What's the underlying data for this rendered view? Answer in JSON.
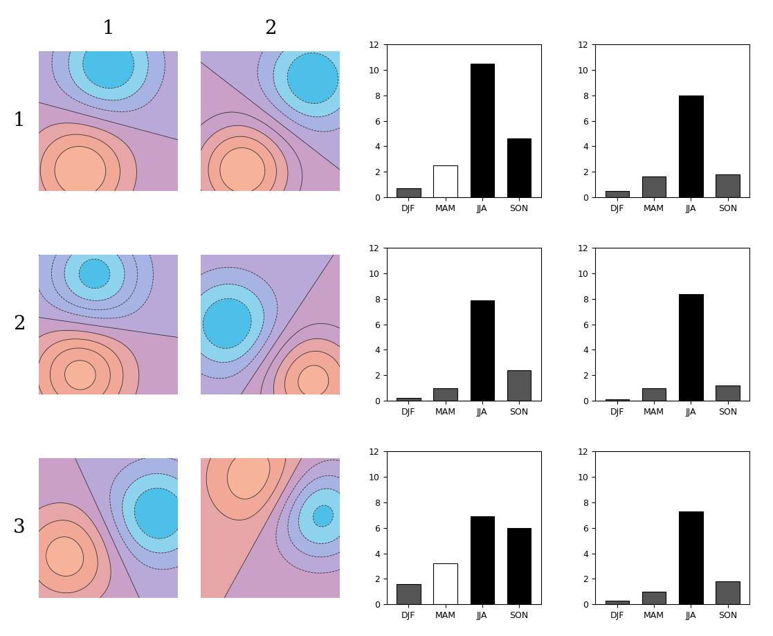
{
  "column_labels": [
    "1",
    "2"
  ],
  "row_labels": [
    "1",
    "2",
    "3"
  ],
  "chart_data": [
    {
      "type": "bar",
      "categories": [
        "DJF",
        "MAM",
        "JJA",
        "SON"
      ],
      "values": [
        0.7,
        2.5,
        10.5,
        4.6
      ],
      "colors": [
        "#555555",
        "#ffffff",
        "#000000",
        "#000000"
      ],
      "ylim": [
        0,
        12
      ],
      "yticks": [
        0,
        2,
        4,
        6,
        8,
        10,
        12
      ]
    },
    {
      "type": "bar",
      "categories": [
        "DJF",
        "MAM",
        "JJA",
        "SON"
      ],
      "values": [
        0.5,
        1.6,
        8.0,
        1.8
      ],
      "colors": [
        "#555555",
        "#555555",
        "#000000",
        "#555555"
      ],
      "ylim": [
        0,
        12
      ],
      "yticks": [
        0,
        2,
        4,
        6,
        8,
        10,
        12
      ]
    },
    {
      "type": "bar",
      "categories": [
        "DJF",
        "MAM",
        "JJA",
        "SON"
      ],
      "values": [
        0.2,
        1.0,
        7.9,
        2.4
      ],
      "colors": [
        "#555555",
        "#555555",
        "#000000",
        "#555555"
      ],
      "ylim": [
        0,
        12
      ],
      "yticks": [
        0,
        2,
        4,
        6,
        8,
        10,
        12
      ]
    },
    {
      "type": "bar",
      "categories": [
        "DJF",
        "MAM",
        "JJA",
        "SON"
      ],
      "values": [
        0.1,
        1.0,
        8.4,
        1.2
      ],
      "colors": [
        "#555555",
        "#555555",
        "#000000",
        "#555555"
      ],
      "ylim": [
        0,
        12
      ],
      "yticks": [
        0,
        2,
        4,
        6,
        8,
        10,
        12
      ]
    },
    {
      "type": "bar",
      "categories": [
        "DJF",
        "MAM",
        "JJA",
        "SON"
      ],
      "values": [
        1.6,
        3.2,
        6.9,
        6.0
      ],
      "colors": [
        "#555555",
        "#ffffff",
        "#000000",
        "#000000"
      ],
      "ylim": [
        0,
        12
      ],
      "yticks": [
        0,
        2,
        4,
        6,
        8,
        10,
        12
      ]
    },
    {
      "type": "bar",
      "categories": [
        "DJF",
        "MAM",
        "JJA",
        "SON"
      ],
      "values": [
        0.3,
        1.0,
        7.3,
        1.8
      ],
      "colors": [
        "#555555",
        "#555555",
        "#000000",
        "#555555"
      ],
      "ylim": [
        0,
        12
      ],
      "yticks": [
        0,
        2,
        4,
        6,
        8,
        10,
        12
      ]
    }
  ]
}
